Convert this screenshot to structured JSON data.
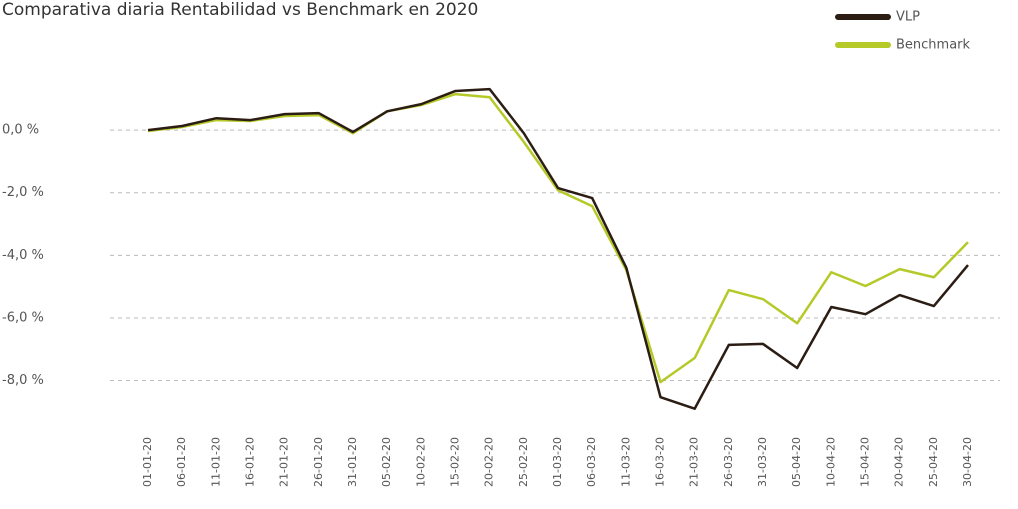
{
  "chart_data": {
    "type": "line",
    "title": "Comparativa diaria Rentabilidad vs Benchmark en 2020",
    "categories": [
      "01-01-20",
      "06-01-20",
      "11-01-20",
      "16-01-20",
      "21-01-20",
      "26-01-20",
      "31-01-20",
      "05-02-20",
      "10-02-20",
      "15-02-20",
      "20-02-20",
      "25-02-20",
      "01-03-20",
      "06-03-20",
      "11-03-20",
      "16-03-20",
      "21-03-20",
      "26-03-20",
      "31-03-20",
      "05-04-20",
      "10-04-20",
      "15-04-20",
      "20-04-20",
      "25-04-20",
      "30-04-20"
    ],
    "series": [
      {
        "name": "VLP",
        "color": "#2b1d14",
        "values": [
          0.0,
          0.13,
          0.38,
          0.32,
          0.51,
          0.54,
          -0.06,
          0.6,
          0.83,
          1.25,
          1.31,
          -0.1,
          -1.85,
          -2.17,
          -4.4,
          -8.53,
          -8.9,
          -6.86,
          -6.83,
          -7.6,
          -5.65,
          -5.88,
          -5.27,
          -5.62,
          -4.31
        ]
      },
      {
        "name": "Benchmark",
        "color": "#b5c928",
        "values": [
          -0.03,
          0.1,
          0.32,
          0.29,
          0.45,
          0.48,
          -0.1,
          0.6,
          0.8,
          1.15,
          1.05,
          -0.38,
          -1.92,
          -2.43,
          -4.47,
          -8.05,
          -7.28,
          -5.11,
          -5.4,
          -6.17,
          -4.54,
          -4.98,
          -4.44,
          -4.7,
          -3.58
        ]
      }
    ],
    "ylim": [
      -9.1,
      1.6
    ],
    "yticks": [
      {
        "value": 0,
        "label": "0,0 %"
      },
      {
        "value": -2,
        "label": "-2,0 %"
      },
      {
        "value": -4,
        "label": "-4,0 %"
      },
      {
        "value": -6,
        "label": "-6,0 %"
      },
      {
        "value": -8,
        "label": "-8,0 %"
      }
    ],
    "grid": true,
    "legend": "top-right"
  }
}
